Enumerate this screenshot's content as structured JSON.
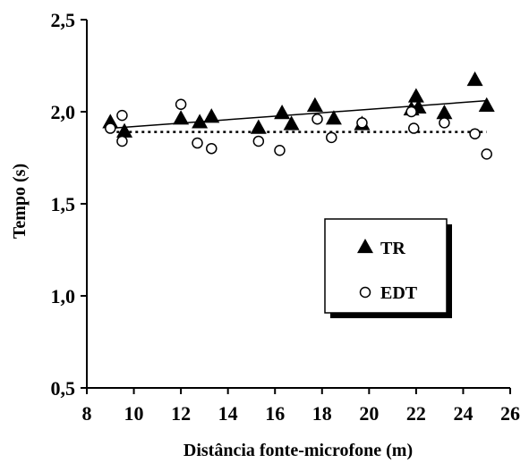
{
  "chart_data": {
    "type": "scatter",
    "title": "",
    "xlabel": "Distância fonte-microfone (m)",
    "ylabel": "Tempo (s)",
    "xlim": [
      8,
      26
    ],
    "ylim": [
      0.5,
      2.5
    ],
    "x_ticks": [
      "8",
      "10",
      "12",
      "14",
      "16",
      "18",
      "20",
      "22",
      "24",
      "26"
    ],
    "y_ticks": [
      "0,5",
      "1,0",
      "1,5",
      "2,0",
      "2,5"
    ],
    "x_tick_values": [
      8,
      10,
      12,
      14,
      16,
      18,
      20,
      22,
      24,
      26
    ],
    "y_tick_values": [
      0.5,
      1.0,
      1.5,
      2.0,
      2.5
    ],
    "grid": false,
    "legend_position": "right-middle",
    "series": [
      {
        "name": "TR",
        "marker": "filled-triangle",
        "color": "#000000",
        "trendline": {
          "style": "solid",
          "x": [
            9.0,
            25.0
          ],
          "y": [
            1.91,
            2.06
          ]
        },
        "points": [
          {
            "x": 9.0,
            "y": 1.94
          },
          {
            "x": 9.6,
            "y": 1.89
          },
          {
            "x": 12.0,
            "y": 1.96
          },
          {
            "x": 12.8,
            "y": 1.94
          },
          {
            "x": 13.3,
            "y": 1.97
          },
          {
            "x": 15.3,
            "y": 1.91
          },
          {
            "x": 16.3,
            "y": 1.99
          },
          {
            "x": 16.7,
            "y": 1.93
          },
          {
            "x": 17.7,
            "y": 2.03
          },
          {
            "x": 18.5,
            "y": 1.96
          },
          {
            "x": 19.7,
            "y": 1.93
          },
          {
            "x": 21.8,
            "y": 2.01
          },
          {
            "x": 22.0,
            "y": 2.08
          },
          {
            "x": 22.1,
            "y": 2.02
          },
          {
            "x": 23.2,
            "y": 1.99
          },
          {
            "x": 24.5,
            "y": 2.17
          },
          {
            "x": 25.0,
            "y": 2.03
          }
        ]
      },
      {
        "name": "EDT",
        "marker": "open-circle",
        "color": "#000000",
        "trendline": {
          "style": "dotted",
          "x": [
            9.0,
            25.0
          ],
          "y": [
            1.89,
            1.89
          ]
        },
        "points": [
          {
            "x": 9.0,
            "y": 1.91
          },
          {
            "x": 9.5,
            "y": 1.98
          },
          {
            "x": 9.5,
            "y": 1.84
          },
          {
            "x": 12.0,
            "y": 2.04
          },
          {
            "x": 12.7,
            "y": 1.83
          },
          {
            "x": 13.3,
            "y": 1.8
          },
          {
            "x": 15.3,
            "y": 1.84
          },
          {
            "x": 16.2,
            "y": 1.79
          },
          {
            "x": 17.8,
            "y": 1.96
          },
          {
            "x": 18.4,
            "y": 1.86
          },
          {
            "x": 19.7,
            "y": 1.94
          },
          {
            "x": 21.8,
            "y": 2.0
          },
          {
            "x": 21.9,
            "y": 1.91
          },
          {
            "x": 23.2,
            "y": 1.94
          },
          {
            "x": 24.5,
            "y": 1.88
          },
          {
            "x": 25.0,
            "y": 1.77
          }
        ]
      }
    ]
  }
}
